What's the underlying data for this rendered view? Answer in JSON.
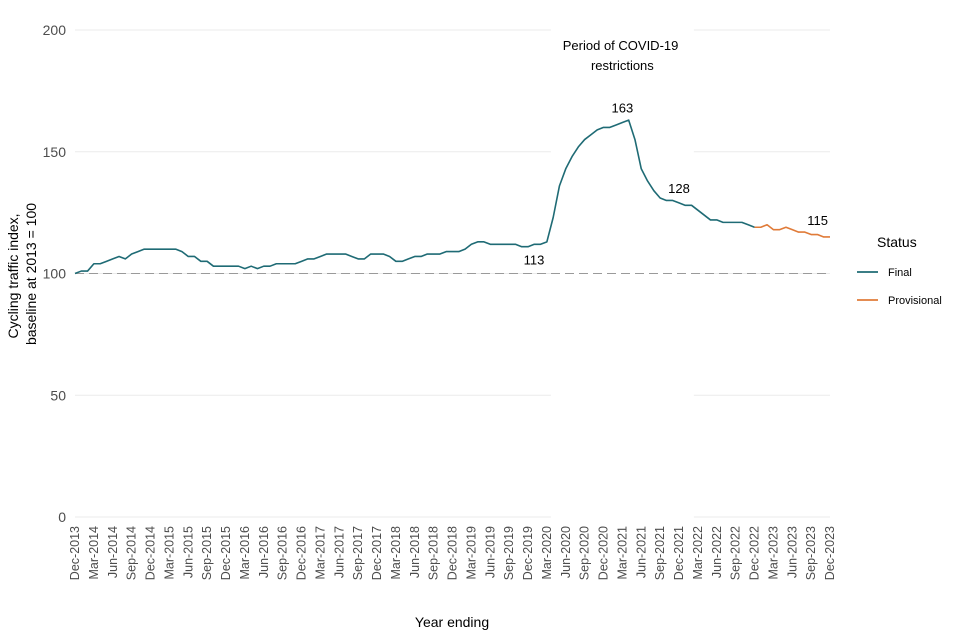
{
  "chart_data": {
    "type": "line",
    "xlabel": "Year ending",
    "ylabel": [
      "Cycling traffic index,",
      "baseline at 2013 = 100"
    ],
    "ylim": [
      0,
      200
    ],
    "yticks": [
      0,
      50,
      100,
      150,
      200
    ],
    "x_tick_labels": [
      "Dec-2013",
      "Mar-2014",
      "Jun-2014",
      "Sep-2014",
      "Dec-2014",
      "Mar-2015",
      "Jun-2015",
      "Sep-2015",
      "Dec-2015",
      "Mar-2016",
      "Jun-2016",
      "Sep-2016",
      "Dec-2016",
      "Mar-2017",
      "Jun-2017",
      "Sep-2017",
      "Dec-2017",
      "Mar-2018",
      "Jun-2018",
      "Sep-2018",
      "Dec-2018",
      "Mar-2019",
      "Jun-2019",
      "Sep-2019",
      "Dec-2019",
      "Mar-2020",
      "Jun-2020",
      "Sep-2020",
      "Dec-2020",
      "Mar-2021",
      "Jun-2021",
      "Sep-2021",
      "Dec-2021",
      "Mar-2022",
      "Jun-2022",
      "Sep-2022",
      "Dec-2022",
      "Mar-2023",
      "Jun-2023",
      "Sep-2023",
      "Dec-2023"
    ],
    "grid": "horizontal",
    "baseline": 100,
    "legend": {
      "title": "Status",
      "position": "right"
    },
    "series": [
      {
        "name": "Final",
        "color": "#1f6b75",
        "x_start": "Dec-2013",
        "x_end": "Dec-2022",
        "values": [
          100,
          101,
          101,
          104,
          104,
          105,
          106,
          107,
          106,
          108,
          109,
          110,
          110,
          110,
          110,
          110,
          110,
          109,
          107,
          107,
          105,
          105,
          103,
          103,
          103,
          103,
          103,
          102,
          103,
          102,
          103,
          103,
          104,
          104,
          104,
          104,
          105,
          106,
          106,
          107,
          108,
          108,
          108,
          108,
          107,
          106,
          106,
          108,
          108,
          108,
          107,
          105,
          105,
          106,
          107,
          107,
          108,
          108,
          108,
          109,
          109,
          109,
          110,
          112,
          113,
          113,
          112,
          112,
          112,
          112,
          112,
          111,
          111,
          112,
          112,
          113,
          123,
          136,
          143,
          148,
          152,
          155,
          157,
          159,
          160,
          160,
          161,
          162,
          163,
          155,
          143,
          138,
          134,
          131,
          130,
          130,
          129,
          128,
          128,
          126,
          124,
          122,
          122,
          121,
          121,
          121,
          121,
          120,
          119
        ]
      },
      {
        "name": "Provisional",
        "color": "#e07b39",
        "x_start": "Dec-2022",
        "x_end": "Dec-2023",
        "values": [
          119,
          119,
          120,
          118,
          118,
          119,
          118,
          117,
          117,
          116,
          116,
          115,
          115
        ]
      }
    ],
    "annotations": [
      {
        "text": "113",
        "x": "Dec-2019"
      },
      {
        "text": "163",
        "x": "Mar-2021"
      },
      {
        "text": "128",
        "x": "Dec-2021"
      },
      {
        "text": "115",
        "x": "Dec-2023"
      }
    ],
    "shaded_region": {
      "label": [
        "Period of COVID-19",
        "restrictions"
      ],
      "from": "Mar-2020",
      "to": "Mar-2022"
    }
  }
}
